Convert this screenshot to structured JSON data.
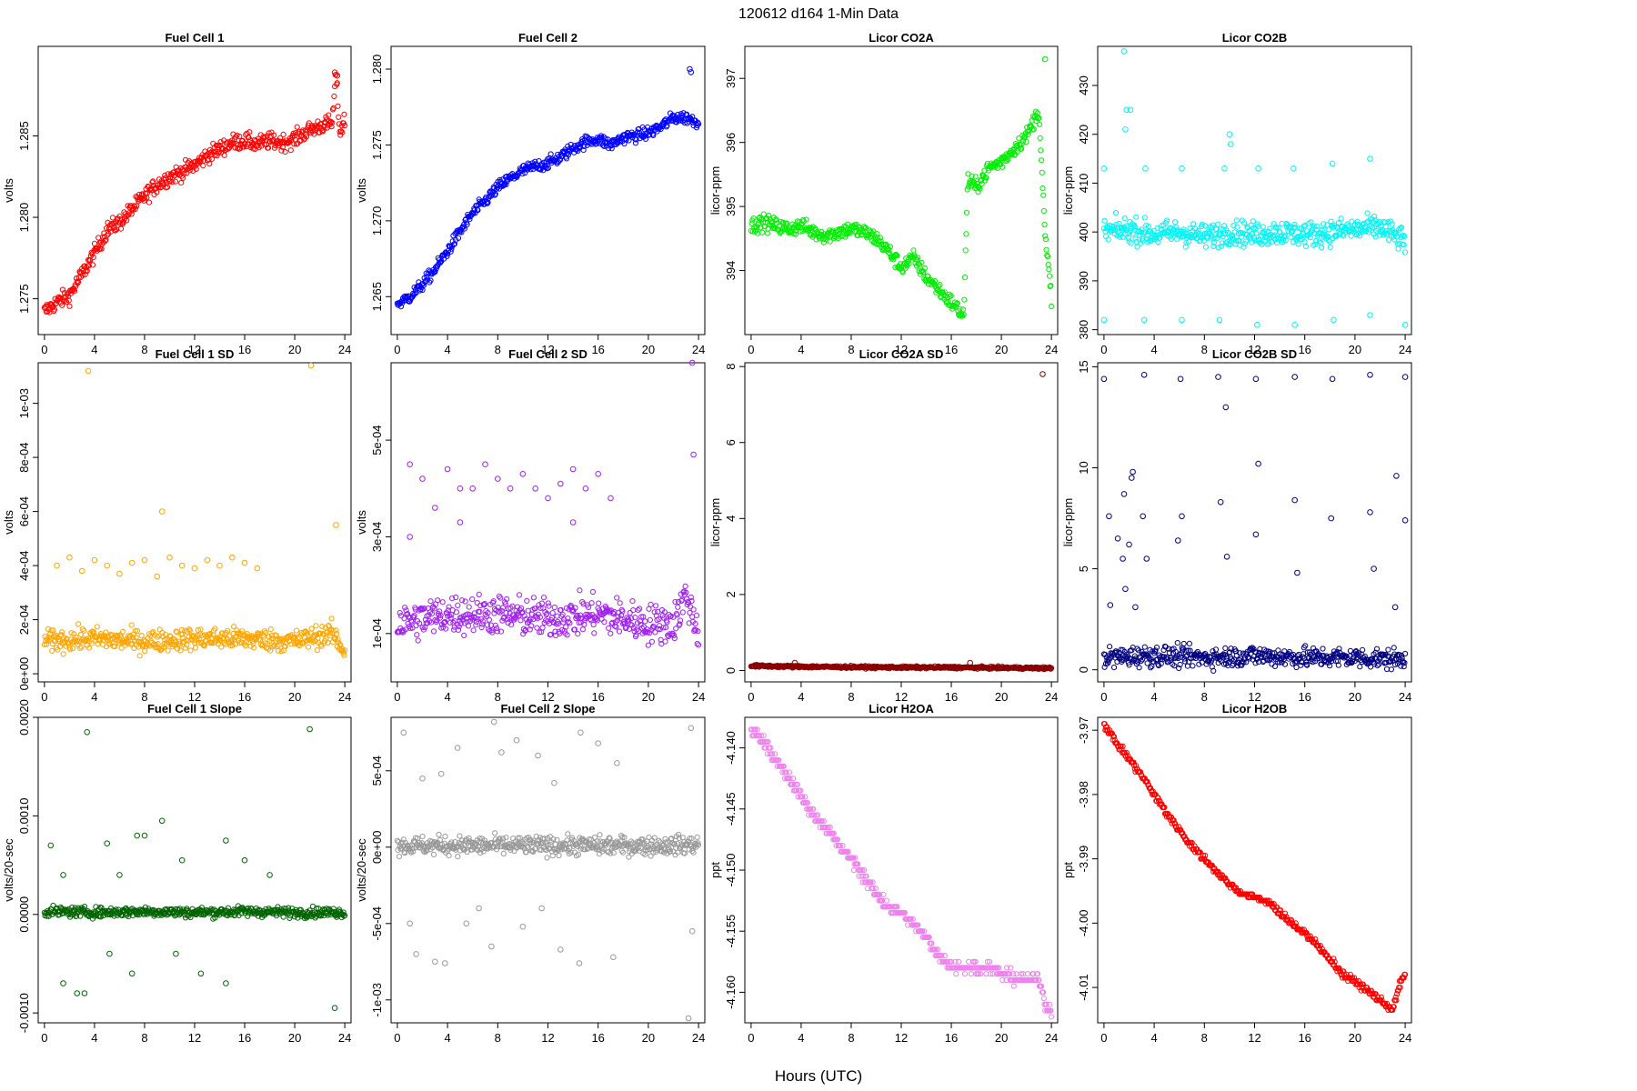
{
  "figure": {
    "title": "120612   d164   1-Min Data",
    "xlabel": "Hours (UTC)",
    "x_ticks": [
      0,
      4,
      8,
      12,
      16,
      20,
      24
    ]
  },
  "chart_data": [
    {
      "type": "scatter",
      "title": "Fuel Cell 1",
      "ylabel": "volts",
      "color": "#ff0000",
      "xlim": [
        -0.5,
        24.5
      ],
      "ylim": [
        1.2728,
        1.2905
      ],
      "y_ticks": [
        1.275,
        1.28,
        1.285
      ],
      "tick_labels": [
        "1.275",
        "1.280",
        "1.285"
      ],
      "x": [
        0,
        1,
        2,
        3,
        4,
        5,
        6,
        7,
        8,
        9,
        10,
        11,
        12,
        13,
        14,
        15,
        16,
        17,
        18,
        19,
        20,
        21,
        22,
        23,
        23.3,
        23.6,
        24
      ],
      "y": [
        1.2742,
        1.2748,
        1.2752,
        1.2765,
        1.2778,
        1.2792,
        1.2797,
        1.2805,
        1.2813,
        1.282,
        1.2825,
        1.2828,
        1.2832,
        1.2838,
        1.2842,
        1.2846,
        1.2847,
        1.2845,
        1.2847,
        1.2846,
        1.2848,
        1.2853,
        1.2856,
        1.2858,
        1.2889,
        1.2852,
        1.286
      ],
      "noise": 0.0005,
      "outliers": [
        [
          23.2,
          1.2889
        ],
        [
          23.4,
          1.2887
        ]
      ]
    },
    {
      "type": "scatter",
      "title": "Fuel Cell 2",
      "ylabel": "volts",
      "color": "#0000ff",
      "xlim": [
        -0.5,
        24.5
      ],
      "ylim": [
        1.2625,
        1.2815
      ],
      "y_ticks": [
        1.265,
        1.27,
        1.275,
        1.28
      ],
      "tick_labels": [
        "1.265",
        "1.270",
        "1.275",
        "1.280"
      ],
      "x": [
        0,
        1,
        2,
        3,
        4,
        5,
        6,
        7,
        8,
        9,
        10,
        11,
        12,
        13,
        14,
        15,
        16,
        17,
        18,
        19,
        20,
        21,
        22,
        23,
        24
      ],
      "y": [
        1.2645,
        1.265,
        1.2658,
        1.2668,
        1.268,
        1.2693,
        1.2705,
        1.2713,
        1.2722,
        1.2728,
        1.2733,
        1.2736,
        1.2738,
        1.2742,
        1.2748,
        1.2752,
        1.2754,
        1.275,
        1.2755,
        1.2756,
        1.2758,
        1.2762,
        1.2768,
        1.2768,
        1.2765
      ],
      "noise": 0.0004,
      "outliers": [
        [
          23.3,
          1.28
        ],
        [
          23.4,
          1.2798
        ]
      ]
    },
    {
      "type": "scatter",
      "title": "Licor CO2A",
      "ylabel": "licor-ppm",
      "color": "#00ee00",
      "xlim": [
        -0.5,
        24.5
      ],
      "ylim": [
        393.0,
        397.5
      ],
      "y_ticks": [
        394,
        395,
        396,
        397
      ],
      "tick_labels": [
        "394",
        "395",
        "396",
        "397"
      ],
      "x": [
        0,
        1,
        2,
        3,
        4,
        5,
        6,
        7,
        8,
        9,
        10,
        11,
        12,
        13,
        14,
        15,
        16,
        17,
        17.3,
        18,
        19,
        20,
        21,
        22,
        23,
        23.5,
        24
      ],
      "y": [
        394.7,
        394.75,
        394.7,
        394.65,
        394.7,
        394.6,
        394.55,
        394.6,
        394.65,
        394.6,
        394.5,
        394.3,
        394.05,
        394.2,
        393.9,
        393.7,
        393.5,
        393.3,
        395.4,
        395.3,
        395.6,
        395.7,
        395.9,
        396.1,
        396.5,
        394.5,
        393.6
      ],
      "noise": 0.12,
      "outliers": [
        [
          23.5,
          397.3
        ]
      ]
    },
    {
      "type": "scatter",
      "title": "Licor CO2B",
      "ylabel": "licor-ppm",
      "color": "#00f5f5",
      "xlim": [
        -0.5,
        24.5
      ],
      "ylim": [
        379,
        438
      ],
      "y_ticks": [
        380,
        390,
        400,
        410,
        420,
        430
      ],
      "tick_labels": [
        "380",
        "390",
        "400",
        "410",
        "420",
        "430"
      ],
      "x": [
        0,
        2,
        4,
        6,
        8,
        10,
        12,
        14,
        16,
        18,
        20,
        22,
        24
      ],
      "y": [
        400,
        400.5,
        399.5,
        400,
        399,
        400,
        399.5,
        400,
        399.5,
        400,
        400.5,
        401,
        398
      ],
      "noise": 2.5,
      "outliers": [
        [
          1.6,
          437
        ],
        [
          1.8,
          425
        ],
        [
          2.1,
          425
        ],
        [
          1.7,
          421
        ],
        [
          0,
          413
        ],
        [
          3.3,
          413
        ],
        [
          6.2,
          413
        ],
        [
          9.6,
          413
        ],
        [
          12.3,
          413
        ],
        [
          15.1,
          413
        ],
        [
          18.2,
          414
        ],
        [
          21.2,
          415
        ],
        [
          0,
          382
        ],
        [
          3.2,
          382
        ],
        [
          6.2,
          382
        ],
        [
          9.2,
          382
        ],
        [
          12.2,
          381
        ],
        [
          15.2,
          381
        ],
        [
          18.3,
          382
        ],
        [
          21.2,
          383
        ],
        [
          24,
          381
        ],
        [
          10,
          420
        ],
        [
          10.1,
          418
        ]
      ]
    },
    {
      "type": "scatter",
      "title": "Fuel Cell 1 SD",
      "ylabel": "volts",
      "color": "#ffa500",
      "xlim": [
        -0.5,
        24.5
      ],
      "ylim": [
        -3e-05,
        0.00115
      ],
      "y_ticks": [
        0,
        0.0002,
        0.0004,
        0.0006,
        0.0008,
        0.001
      ],
      "tick_labels": [
        "0e+00",
        "2e-04",
        "4e-04",
        "6e-04",
        "8e-04",
        "1e-03"
      ],
      "x": [
        0,
        4,
        8,
        12,
        16,
        20,
        23,
        24
      ],
      "y": [
        0.00012,
        0.00013,
        0.00012,
        0.00013,
        0.00013,
        0.00012,
        0.00015,
        8e-05
      ],
      "noise": 4e-05,
      "outliers": [
        [
          3.5,
          0.00112
        ],
        [
          21.3,
          0.00114
        ],
        [
          9.4,
          0.0006
        ],
        [
          23.3,
          0.00055
        ],
        [
          1,
          0.0004
        ],
        [
          2,
          0.00043
        ],
        [
          3,
          0.00038
        ],
        [
          4,
          0.00042
        ],
        [
          5,
          0.0004
        ],
        [
          6,
          0.00037
        ],
        [
          7,
          0.00041
        ],
        [
          8,
          0.00042
        ],
        [
          9,
          0.00036
        ],
        [
          10,
          0.00043
        ],
        [
          11,
          0.0004
        ],
        [
          12,
          0.00039
        ],
        [
          13,
          0.00042
        ],
        [
          14,
          0.0004
        ],
        [
          15,
          0.00043
        ],
        [
          16,
          0.00041
        ],
        [
          17,
          0.00039
        ]
      ]
    },
    {
      "type": "scatter",
      "title": "Fuel Cell 2 SD",
      "ylabel": "volts",
      "color": "#a020f0",
      "xlim": [
        -0.5,
        24.5
      ],
      "ylim": [
        0.0,
        0.00066
      ],
      "y_ticks": [
        0.0001,
        0.0003,
        0.0005
      ],
      "tick_labels": [
        "1e-04",
        "3e-04",
        "5e-04"
      ],
      "x": [
        0,
        4,
        8,
        12,
        16,
        20,
        22,
        23,
        24
      ],
      "y": [
        0.00012,
        0.00014,
        0.00014,
        0.00013,
        0.00014,
        0.00012,
        0.00012,
        0.00018,
        0.0001
      ],
      "noise": 4e-05,
      "outliers": [
        [
          23.5,
          0.00066
        ],
        [
          23.6,
          0.00047
        ],
        [
          1,
          0.00045
        ],
        [
          2,
          0.00042
        ],
        [
          3,
          0.00036
        ],
        [
          4,
          0.00044
        ],
        [
          5,
          0.0004
        ],
        [
          6,
          0.0004
        ],
        [
          7,
          0.00045
        ],
        [
          8,
          0.00042
        ],
        [
          9,
          0.0004
        ],
        [
          10,
          0.00043
        ],
        [
          11,
          0.0004
        ],
        [
          12,
          0.00038
        ],
        [
          13,
          0.00041
        ],
        [
          14,
          0.00044
        ],
        [
          15,
          0.0004
        ],
        [
          16,
          0.00043
        ],
        [
          17,
          0.00038
        ],
        [
          5,
          0.00033
        ],
        [
          14,
          0.00033
        ],
        [
          1,
          0.0003
        ]
      ]
    },
    {
      "type": "scatter",
      "title": "Licor CO2A SD",
      "ylabel": "licor-ppm",
      "color": "#8b0000",
      "xlim": [
        -0.5,
        24.5
      ],
      "ylim": [
        -0.3,
        8.1
      ],
      "y_ticks": [
        0,
        2,
        4,
        6,
        8
      ],
      "tick_labels": [
        "0",
        "2",
        "4",
        "6",
        "8"
      ],
      "x": [
        0,
        4,
        8,
        12,
        16,
        20,
        24
      ],
      "y": [
        0.12,
        0.1,
        0.09,
        0.08,
        0.08,
        0.07,
        0.06
      ],
      "noise": 0.03,
      "outliers": [
        [
          23.3,
          7.8
        ],
        [
          3.5,
          0.2
        ],
        [
          17.5,
          0.2
        ]
      ]
    },
    {
      "type": "scatter",
      "title": "Licor CO2B SD",
      "ylabel": "licor-ppm",
      "color": "#000080",
      "xlim": [
        -0.5,
        24.5
      ],
      "ylim": [
        -0.6,
        15.2
      ],
      "y_ticks": [
        0,
        5,
        10,
        15
      ],
      "tick_labels": [
        "0",
        "5",
        "10",
        "15"
      ],
      "x": [
        0,
        4,
        8,
        12,
        16,
        20,
        24
      ],
      "y": [
        0.6,
        0.7,
        0.6,
        0.7,
        0.6,
        0.6,
        0.5
      ],
      "noise": 0.5,
      "outliers": [
        [
          0,
          14.4
        ],
        [
          3.2,
          14.6
        ],
        [
          6.1,
          14.4
        ],
        [
          9.1,
          14.5
        ],
        [
          12.1,
          14.4
        ],
        [
          15.2,
          14.5
        ],
        [
          18.2,
          14.4
        ],
        [
          21.2,
          14.6
        ],
        [
          24,
          14.5
        ],
        [
          9.7,
          13
        ],
        [
          12.3,
          10.2
        ],
        [
          23.3,
          9.6
        ],
        [
          2.3,
          9.8
        ],
        [
          2.2,
          9.5
        ],
        [
          1.6,
          8.7
        ],
        [
          1.1,
          6.5
        ],
        [
          0.4,
          7.6
        ],
        [
          3.1,
          7.6
        ],
        [
          6.2,
          7.6
        ],
        [
          9.3,
          8.3
        ],
        [
          15.2,
          8.4
        ],
        [
          18.1,
          7.5
        ],
        [
          21.2,
          7.8
        ],
        [
          24,
          7.4
        ],
        [
          2,
          6.2
        ],
        [
          1.5,
          5.5
        ],
        [
          3.4,
          5.5
        ],
        [
          5.9,
          6.4
        ],
        [
          9.8,
          5.6
        ],
        [
          12.1,
          6.7
        ],
        [
          15.4,
          4.8
        ],
        [
          21.5,
          5.0
        ],
        [
          23.2,
          3.1
        ],
        [
          0.5,
          3.2
        ],
        [
          1.7,
          4.0
        ],
        [
          2.5,
          3.1
        ]
      ]
    },
    {
      "type": "scatter",
      "title": "Fuel Cell 1 Slope",
      "ylabel": "volts/20-sec",
      "color": "#006400",
      "xlim": [
        -0.5,
        24.5
      ],
      "ylim": [
        -0.0011,
        0.002
      ],
      "y_ticks": [
        -0.001,
        0,
        0.001,
        0.002
      ],
      "tick_labels": [
        "-0.0010",
        "0.0000",
        "0.0010",
        "0.0020"
      ],
      "x": [
        0,
        4,
        8,
        12,
        16,
        20,
        24
      ],
      "y": [
        3e-05,
        2e-05,
        3e-05,
        2e-05,
        3e-05,
        2e-05,
        2e-05
      ],
      "noise": 5e-05,
      "outliers": [
        [
          3.4,
          0.00185
        ],
        [
          21.2,
          0.00188
        ],
        [
          9.4,
          0.00095
        ],
        [
          23.2,
          -0.00095
        ],
        [
          3.2,
          -0.0008
        ],
        [
          2.6,
          -0.0008
        ],
        [
          7.4,
          0.0008
        ],
        [
          8,
          0.0008
        ],
        [
          14.5,
          0.00075
        ],
        [
          5,
          0.00072
        ],
        [
          0.5,
          0.0007
        ],
        [
          1.5,
          0.0004
        ],
        [
          11,
          0.00055
        ],
        [
          16,
          0.00055
        ],
        [
          7,
          -0.0006
        ],
        [
          12.5,
          -0.0006
        ],
        [
          14.5,
          -0.0007
        ],
        [
          1.5,
          -0.0007
        ],
        [
          10.5,
          -0.0004
        ],
        [
          5.2,
          -0.0004
        ],
        [
          18,
          0.0004
        ],
        [
          6,
          0.0004
        ]
      ]
    },
    {
      "type": "scatter",
      "title": "Fuel Cell 2 Slope",
      "ylabel": "volts/20-sec",
      "color": "#999999",
      "xlim": [
        -0.5,
        24.5
      ],
      "ylim": [
        -0.00115,
        0.00085
      ],
      "y_ticks": [
        -0.001,
        -0.0005,
        0,
        0.0005
      ],
      "tick_labels": [
        "-1e-03",
        "-5e-04",
        "0e+00",
        "5e-04"
      ],
      "x": [
        0,
        4,
        8,
        12,
        16,
        20,
        22,
        24
      ],
      "y": [
        1e-05,
        1e-05,
        1e-05,
        1e-05,
        1e-05,
        1e-05,
        1e-05,
        2e-05
      ],
      "noise": 6e-05,
      "outliers": [
        [
          23.2,
          -0.00112
        ],
        [
          7.7,
          0.00082
        ],
        [
          0.5,
          0.00075
        ],
        [
          23.4,
          0.00078
        ],
        [
          4.8,
          0.00065
        ],
        [
          8.3,
          0.00062
        ],
        [
          9.5,
          0.0007
        ],
        [
          11.2,
          0.0006
        ],
        [
          14.6,
          0.00075
        ],
        [
          16,
          0.00068
        ],
        [
          17.5,
          0.00055
        ],
        [
          2,
          0.00045
        ],
        [
          3.5,
          0.00048
        ],
        [
          12.5,
          0.00042
        ],
        [
          1.5,
          -0.0007
        ],
        [
          3,
          -0.00075
        ],
        [
          3.8,
          -0.00076
        ],
        [
          10,
          -0.00052
        ],
        [
          13,
          -0.00067
        ],
        [
          14.5,
          -0.00076
        ],
        [
          7.5,
          -0.00065
        ],
        [
          17.2,
          -0.00072
        ],
        [
          23.5,
          -0.00055
        ],
        [
          1,
          -0.0005
        ],
        [
          5.5,
          -0.0005
        ],
        [
          6.5,
          -0.0004
        ],
        [
          11.5,
          -0.0004
        ]
      ]
    },
    {
      "type": "scatter",
      "title": "Licor H2OA",
      "ylabel": "ppt",
      "color": "#ee82ee",
      "xlim": [
        -0.5,
        24.5
      ],
      "ylim": [
        -4.1625,
        -4.1375
      ],
      "y_ticks": [
        -4.16,
        -4.155,
        -4.15,
        -4.145,
        -4.14
      ],
      "tick_labels": [
        "-4.160",
        "-4.155",
        "-4.150",
        "-4.145",
        "-4.140"
      ],
      "step": 0.001,
      "x": [
        0,
        1,
        2,
        3,
        4,
        5,
        6,
        7,
        8,
        9,
        10,
        11,
        12,
        13,
        14,
        15,
        16,
        17,
        18,
        19,
        20,
        21,
        22,
        23,
        23.5,
        24
      ],
      "y": [
        -4.1385,
        -4.1395,
        -4.141,
        -4.1425,
        -4.144,
        -4.1455,
        -4.1465,
        -4.148,
        -4.149,
        -4.1505,
        -4.152,
        -4.153,
        -4.1535,
        -4.1545,
        -4.1555,
        -4.157,
        -4.1578,
        -4.158,
        -4.158,
        -4.158,
        -4.1585,
        -4.1588,
        -4.159,
        -4.159,
        -4.161,
        -4.1615
      ],
      "noise": 0.0004,
      "outliers": []
    },
    {
      "type": "scatter",
      "title": "Licor H2OB",
      "ylabel": "ppt",
      "color": "#ff0000",
      "xlim": [
        -0.5,
        24.5
      ],
      "ylim": [
        -4.0155,
        -3.968
      ],
      "y_ticks": [
        -4.01,
        -4.0,
        -3.99,
        -3.98,
        -3.97
      ],
      "tick_labels": [
        "-4.01",
        "-4.00",
        "-3.99",
        "-3.98",
        "-3.97"
      ],
      "step": 0.001,
      "x": [
        0,
        1,
        2,
        3,
        4,
        5,
        6,
        7,
        8,
        9,
        10,
        11,
        12,
        13,
        14,
        15,
        16,
        17,
        18,
        19,
        20,
        21,
        22,
        23,
        23.5,
        24
      ],
      "y": [
        -3.969,
        -3.972,
        -3.9745,
        -3.977,
        -3.98,
        -3.983,
        -3.9855,
        -3.988,
        -3.99,
        -3.992,
        -3.994,
        -3.9955,
        -3.996,
        -3.9965,
        -3.9985,
        -4.0,
        -4.0015,
        -4.0035,
        -4.0055,
        -4.008,
        -4.009,
        -4.0105,
        -4.012,
        -4.0135,
        -4.01,
        -4.008
      ],
      "noise": 0.0005,
      "outliers": []
    }
  ]
}
